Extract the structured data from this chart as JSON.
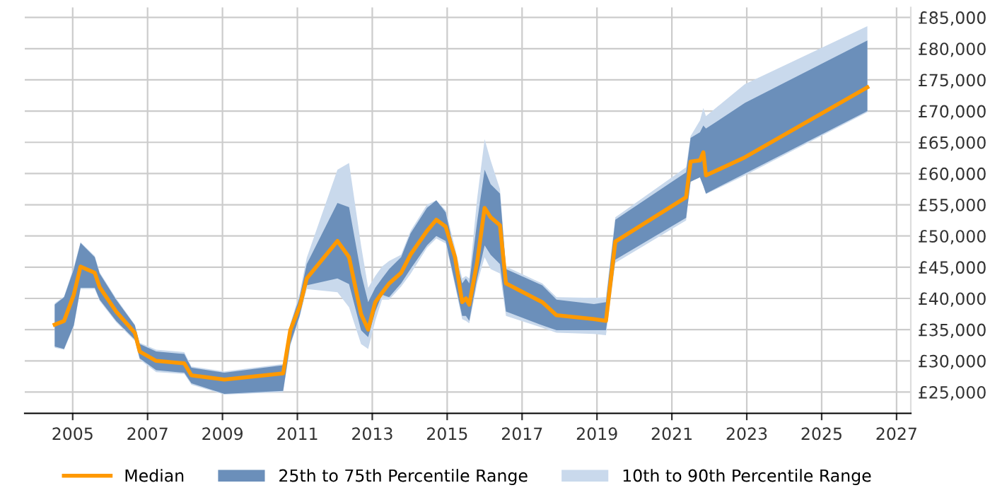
{
  "chart_data": {
    "type": "line",
    "x": [
      2004.52,
      2004.77,
      2005.03,
      2005.21,
      2005.59,
      2005.72,
      2006.16,
      2006.66,
      2006.79,
      2007.23,
      2007.98,
      2008.17,
      2009.05,
      2010.62,
      2010.81,
      2011.06,
      2011.25,
      2012.07,
      2012.38,
      2012.7,
      2012.89,
      2013.08,
      2013.26,
      2013.45,
      2013.77,
      2014.02,
      2014.46,
      2014.71,
      2014.96,
      2015.21,
      2015.4,
      2015.5,
      2015.59,
      2015.8,
      2016.0,
      2016.16,
      2016.41,
      2016.57,
      2017.54,
      2017.92,
      2018.92,
      2019.24,
      2019.49,
      2021.38,
      2021.5,
      2021.75,
      2021.84,
      2021.91,
      2022.95,
      2026.22
    ],
    "series": [
      {
        "name": "Median",
        "color": "#ff9900",
        "values": [
          35800,
          36400,
          40600,
          45100,
          44100,
          41800,
          37900,
          34500,
          31500,
          30000,
          29600,
          27700,
          27000,
          28000,
          34900,
          38700,
          43200,
          49200,
          46600,
          37500,
          35000,
          39400,
          40900,
          42400,
          44100,
          47000,
          50800,
          52600,
          51500,
          46600,
          39400,
          40000,
          39000,
          45800,
          54500,
          53000,
          51700,
          42400,
          39400,
          37300,
          36700,
          36400,
          49100,
          56200,
          61900,
          62100,
          63400,
          59700,
          62600,
          73800
        ]
      },
      {
        "name": "25th to 75th Percentile Range",
        "color": "#6b8fba",
        "values": [
          null,
          null,
          null,
          null,
          null,
          null,
          null,
          null,
          null,
          null,
          null,
          null,
          null,
          null,
          null,
          null,
          null,
          null,
          null,
          null,
          null,
          null,
          null,
          null,
          null,
          null,
          null,
          null,
          null,
          null,
          null,
          null,
          null,
          null,
          null,
          null,
          null,
          null,
          null,
          null,
          null,
          null,
          null,
          null,
          null,
          null,
          null,
          null,
          null,
          null
        ],
        "lower": [
          32300,
          31900,
          35700,
          41700,
          41700,
          39800,
          36400,
          33400,
          30400,
          28500,
          28100,
          26400,
          24700,
          25200,
          32700,
          37200,
          42100,
          43200,
          42300,
          34900,
          33800,
          37900,
          40600,
          40200,
          42400,
          44700,
          48500,
          50000,
          49200,
          42400,
          37200,
          37200,
          36400,
          43200,
          48500,
          47000,
          45500,
          37900,
          35700,
          34900,
          34900,
          34900,
          46200,
          52900,
          58700,
          59400,
          58000,
          56800,
          60000,
          70000
        ],
        "upper": [
          39000,
          40200,
          44700,
          48900,
          46600,
          44000,
          39800,
          35700,
          32700,
          31500,
          31100,
          28900,
          28100,
          29300,
          35700,
          40200,
          45500,
          55300,
          54600,
          44000,
          39400,
          41700,
          43200,
          44700,
          46600,
          50400,
          54500,
          55700,
          53800,
          47000,
          42400,
          43200,
          42400,
          52300,
          60600,
          58300,
          56800,
          44700,
          42100,
          39800,
          39100,
          39400,
          52600,
          60200,
          65700,
          66600,
          67700,
          67200,
          71300,
          81300
        ]
      },
      {
        "name": "10th to 90th Percentile Range",
        "color": "#c9d9ec",
        "values": [
          null,
          null,
          null,
          null,
          null,
          null,
          null,
          null,
          null,
          null,
          null,
          null,
          null,
          null,
          null,
          null,
          null,
          null,
          null,
          null,
          null,
          null,
          null,
          null,
          null,
          null,
          null,
          null,
          null,
          null,
          null,
          null,
          null,
          null,
          null,
          null,
          null,
          null,
          null,
          null,
          null,
          null,
          null,
          null,
          null,
          null,
          null,
          null,
          null,
          null
        ],
        "lower": [
          32100,
          31800,
          35500,
          41500,
          41500,
          39600,
          36200,
          33200,
          30200,
          28200,
          27900,
          26200,
          24600,
          25000,
          32400,
          37000,
          41500,
          41000,
          38600,
          32700,
          31900,
          36400,
          39800,
          39800,
          41900,
          43900,
          48100,
          49600,
          48800,
          42000,
          36700,
          36400,
          36000,
          42400,
          46600,
          44700,
          44000,
          37200,
          35300,
          34500,
          34300,
          34100,
          45700,
          52500,
          58700,
          59400,
          58000,
          56700,
          59700,
          69800
        ],
        "upper": [
          39200,
          40300,
          45000,
          49000,
          46800,
          44200,
          40000,
          35800,
          32900,
          31800,
          31400,
          29100,
          28300,
          29500,
          35900,
          40800,
          46500,
          60600,
          61700,
          48500,
          41700,
          43600,
          45100,
          46000,
          47000,
          50800,
          55000,
          55700,
          54100,
          48100,
          43200,
          43600,
          43200,
          56000,
          65500,
          62100,
          57500,
          45100,
          42400,
          40200,
          40100,
          40200,
          53000,
          61000,
          66000,
          68500,
          70500,
          69200,
          74300,
          83600
        ]
      }
    ],
    "xlim": [
      2003.72,
      2027.38
    ],
    "xticks": [
      2005,
      2007,
      2009,
      2011,
      2013,
      2015,
      2017,
      2019,
      2021,
      2023,
      2025,
      2027
    ],
    "ylim": [
      21600,
      86600
    ],
    "yticks": [
      {
        "value": 25000,
        "label": "£25,000"
      },
      {
        "value": 30000,
        "label": "£30,000"
      },
      {
        "value": 35000,
        "label": "£35,000"
      },
      {
        "value": 40000,
        "label": "£40,000"
      },
      {
        "value": 45000,
        "label": "£45,000"
      },
      {
        "value": 50000,
        "label": "£50,000"
      },
      {
        "value": 55000,
        "label": "£55,000"
      },
      {
        "value": 60000,
        "label": "£60,000"
      },
      {
        "value": 65000,
        "label": "£65,000"
      },
      {
        "value": 70000,
        "label": "£70,000"
      },
      {
        "value": 75000,
        "label": "£75,000"
      },
      {
        "value": 80000,
        "label": "£80,000"
      },
      {
        "value": 85000,
        "label": "£85,000"
      }
    ],
    "grid": true,
    "legend": "bottom",
    "marker": "none",
    "line_style": "solid"
  }
}
